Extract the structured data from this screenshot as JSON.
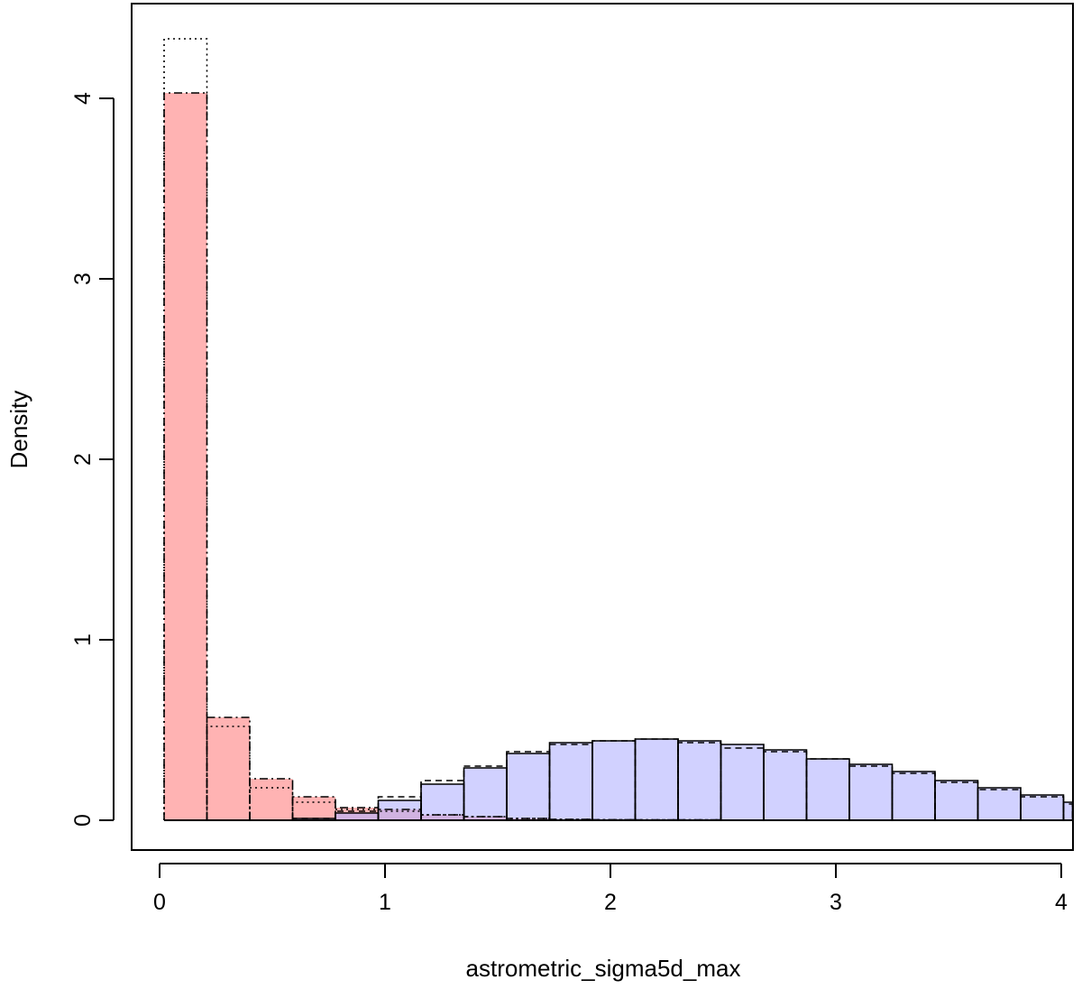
{
  "chart_data": {
    "type": "bar",
    "title": "",
    "xlabel": "astrometric_sigma5d_max",
    "ylabel": "Density",
    "xlim": [
      0,
      4
    ],
    "ylim": [
      0,
      4.35
    ],
    "x_ticks": [
      "0",
      "1",
      "2",
      "3",
      "4"
    ],
    "y_ticks": [
      "0",
      "1",
      "2",
      "3",
      "4"
    ],
    "grid": false,
    "legend": "none",
    "bins": [
      [
        0.02,
        0.21
      ],
      [
        0.21,
        0.4
      ],
      [
        0.4,
        0.59
      ],
      [
        0.59,
        0.78
      ],
      [
        0.78,
        0.97
      ],
      [
        0.97,
        1.16
      ],
      [
        1.16,
        1.35
      ],
      [
        1.35,
        1.54
      ],
      [
        1.54,
        1.73
      ],
      [
        1.73,
        1.92
      ],
      [
        1.92,
        2.11
      ],
      [
        2.11,
        2.3
      ],
      [
        2.3,
        2.49
      ],
      [
        2.49,
        2.68
      ],
      [
        2.68,
        2.87
      ],
      [
        2.87,
        3.06
      ],
      [
        3.06,
        3.25
      ],
      [
        3.25,
        3.44
      ],
      [
        3.44,
        3.63
      ],
      [
        3.63,
        3.82
      ],
      [
        3.82,
        4.01
      ],
      [
        4.01,
        4.05
      ]
    ],
    "series": [
      {
        "group": "red",
        "fill": "#ffb3b3",
        "line": "dotdash",
        "values": [
          4.03,
          0.57,
          0.23,
          0.13,
          0.07,
          0.06,
          0.03,
          0.02,
          0.01,
          0.005,
          0.003,
          0.002,
          0.002,
          0.001,
          0.001,
          0.0,
          0.0,
          0.0,
          0.0,
          0.0,
          0.0,
          0.0
        ]
      },
      {
        "group": "red",
        "fill": "none",
        "line": "dotted",
        "values": [
          4.33,
          0.52,
          0.18,
          0.1,
          0.06,
          0.05,
          0.03,
          0.02,
          0.01,
          0.005,
          0.003,
          0.002,
          0.002,
          0.001,
          0.001,
          0.0,
          0.0,
          0.0,
          0.0,
          0.0,
          0.0,
          0.0
        ]
      },
      {
        "group": "blue",
        "fill": "#b3b3ff",
        "line": "solid",
        "values": [
          0.0,
          0.0,
          0.0,
          0.01,
          0.04,
          0.11,
          0.2,
          0.29,
          0.37,
          0.43,
          0.44,
          0.45,
          0.44,
          0.42,
          0.39,
          0.34,
          0.31,
          0.27,
          0.22,
          0.18,
          0.14,
          0.1
        ]
      },
      {
        "group": "blue",
        "fill": "none",
        "line": "dashed",
        "values": [
          0.0,
          0.0,
          0.0,
          0.01,
          0.05,
          0.13,
          0.22,
          0.3,
          0.38,
          0.42,
          0.44,
          0.45,
          0.43,
          0.4,
          0.38,
          0.34,
          0.3,
          0.26,
          0.21,
          0.17,
          0.13,
          0.09
        ]
      }
    ]
  }
}
